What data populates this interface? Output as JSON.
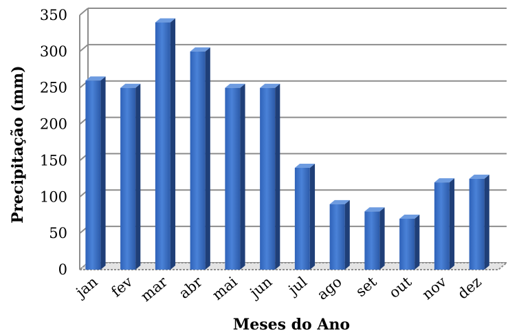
{
  "chart_data": {
    "type": "bar",
    "title": "",
    "xlabel": "Meses do Ano",
    "ylabel": "Precipitação (mm)",
    "categories": [
      "jan",
      "fev",
      "mar",
      "abr",
      "mai",
      "jun",
      "jul",
      "ago",
      "set",
      "out",
      "nov",
      "dez"
    ],
    "values": [
      260,
      250,
      340,
      300,
      250,
      250,
      140,
      90,
      80,
      70,
      120,
      125
    ],
    "ylim": [
      0,
      350
    ],
    "yticks": [
      "0",
      "50",
      "100",
      "150",
      "200",
      "250",
      "300",
      "350"
    ],
    "grid": true,
    "legend": "none",
    "style": "3d-column",
    "colors": {
      "bar_front": "#3a6fc4",
      "bar_side": "#1f3f78",
      "bar_top": "#6d9be0",
      "grid": "#8c8c8c"
    }
  }
}
